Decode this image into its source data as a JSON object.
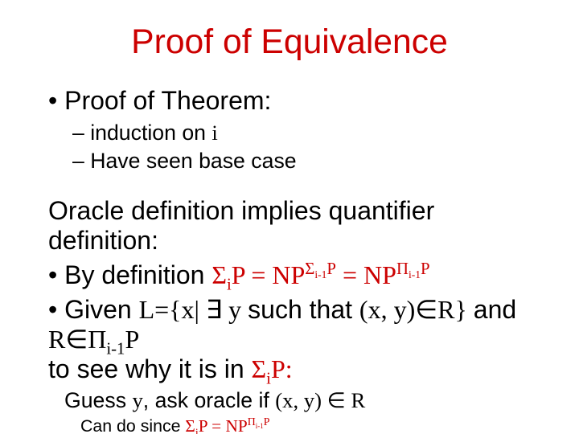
{
  "colors": {
    "title": "#cc0000",
    "body": "#000000",
    "math_highlight": "#cc0000",
    "background": "#ffffff"
  },
  "fonts": {
    "body_family": "Arial",
    "math_family": "Comic Sans MS",
    "title_size_pt": 32,
    "level1_size_pt": 24,
    "level2_size_pt": 20,
    "level3_size_pt": 18,
    "level4_size_pt": 15
  },
  "title": "Proof of Equivalence",
  "l1": "Proof of Theorem:",
  "l1a": "induction on ",
  "l1a_var": "i",
  "l1b": "Have seen base case",
  "block2_intro": "Oracle definition implies quantifier definition:",
  "l2": "By definition ",
  "l2_eq_left": "Σ",
  "l2_eq_left_sub": "i",
  "l2_eq_left_P": "P = NP",
  "l2_eq_sig": "Σ",
  "l2_eq_sup1": "i-1",
  "l2_eq_supP": "P",
  "l2_eq_eqtxt": " =  NP",
  "l2_eq_pi": "Π",
  "l3_pre": "Given ",
  "l3_L": "L={x| ",
  "l3_exists": "∃",
  "l3_y": " y ",
  "l3_such": "such that ",
  "l3_pair": "(x, y)",
  "l3_inR": "∈R} ",
  "l3_and": "and ",
  "l3_R": "R",
  "l3_in": "∈Π",
  "l3_sub": "i-1",
  "l3_P": "P",
  "l3_tail": "to see why it is in ",
  "l3_tail_sig": "Σ",
  "l3_tail_i": "i",
  "l3_tail_P": "P:",
  "l4_guess": "Guess ",
  "l4_y": "y",
  "l4_ask": ", ask oracle if ",
  "l4_pair": "(x, y) ",
  "l4_in": "∈",
  "l4_R": " R",
  "l5_can": "Can do since ",
  "l5_sig": "Σ",
  "l5_i": "i",
  "l5_P": "P  =  NP",
  "l5_pi": "Π",
  "l5_sup1": "i-1",
  "l5_supP": "P"
}
